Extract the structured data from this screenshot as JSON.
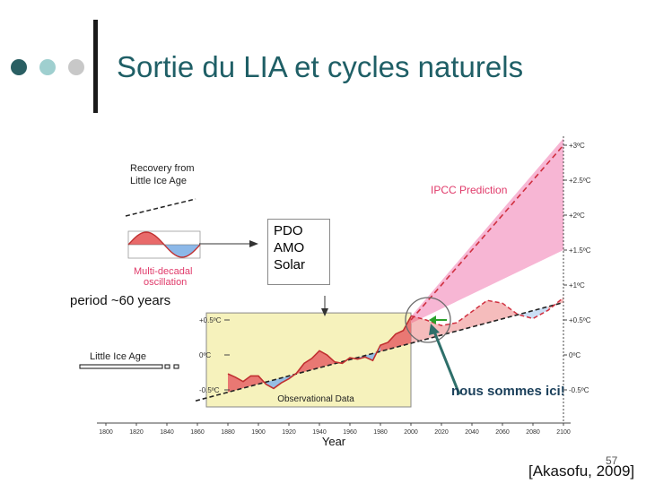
{
  "slide": {
    "title": "Sortie du LIA et cycles naturels",
    "page_number": "57",
    "citation": "[Akasofu, 2009]",
    "bullet_colors": [
      "#2a5f63",
      "#9fcfcf",
      "#c8c8c8"
    ]
  },
  "labels": {
    "recovery": [
      "Recovery from",
      "Little  Ice Age"
    ],
    "multidecadal": [
      "Multi-decadal",
      "oscillation"
    ],
    "period": "period ~60 years",
    "lia_legend": "Little Ice Age",
    "ipcc": "IPCC Prediction",
    "obs": "Observational Data",
    "here": "nous sommes ici!"
  },
  "callout": {
    "lines": [
      "PDO",
      "AMO",
      "Solar"
    ]
  },
  "colors": {
    "ipcc_fan": "#f7b6d4",
    "ipcc_line": "#d03040",
    "warm": "#e86a6a",
    "cool": "#8cb8e8",
    "obs_box": "#f6f2bc",
    "arrow": "#2e6f6a",
    "green_arrow": "#2aa02a"
  },
  "chart_data": {
    "type": "line",
    "title": "",
    "xlabel": "Year",
    "ylabel": "",
    "xlim": [
      1800,
      2100
    ],
    "ylim": [
      -0.7,
      3.1
    ],
    "x_ticks": [
      1800,
      1820,
      1840,
      1860,
      1880,
      1900,
      1920,
      1940,
      1960,
      1980,
      2000,
      2020,
      2040,
      2060,
      2080,
      2100
    ],
    "y_ticks_right": [
      {
        "value": 3.0,
        "label": "+3ºC"
      },
      {
        "value": 2.5,
        "label": "+2.5ºC"
      },
      {
        "value": 2.0,
        "label": "+2ºC"
      },
      {
        "value": 1.5,
        "label": "+1.5ºC"
      },
      {
        "value": 1.0,
        "label": "+1ºC"
      },
      {
        "value": 0.5,
        "label": "+0.5ºC"
      },
      {
        "value": 0.0,
        "label": "0ºC"
      },
      {
        "value": -0.5,
        "label": "-0.5ºC"
      }
    ],
    "y_ticks_left": [
      {
        "value": 0.5,
        "label": "+0.5ºC"
      },
      {
        "value": 0.0,
        "label": "0ºC"
      },
      {
        "value": -0.5,
        "label": "-0.5ºC"
      }
    ],
    "obs_range": [
      1880,
      2000
    ],
    "trend": {
      "x": [
        1800,
        2100
      ],
      "y": [
        -1.0,
        0.75
      ]
    },
    "ipcc_line": {
      "x": [
        2000,
        2100
      ],
      "y": [
        0.5,
        3.0
      ]
    },
    "ipcc_fan": {
      "x": [
        2000,
        2100
      ],
      "low": [
        0.45,
        1.5
      ],
      "high": [
        0.55,
        3.1
      ]
    },
    "observed": {
      "x": [
        1880,
        1885,
        1890,
        1895,
        1900,
        1905,
        1910,
        1915,
        1920,
        1925,
        1930,
        1935,
        1940,
        1945,
        1950,
        1955,
        1960,
        1965,
        1970,
        1975,
        1980,
        1985,
        1990,
        1995,
        2000
      ],
      "y": [
        -0.27,
        -0.32,
        -0.38,
        -0.3,
        -0.3,
        -0.42,
        -0.48,
        -0.4,
        -0.34,
        -0.26,
        -0.12,
        -0.05,
        0.06,
        0.0,
        -0.1,
        -0.12,
        -0.04,
        -0.06,
        -0.03,
        -0.08,
        0.14,
        0.18,
        0.3,
        0.35,
        0.55
      ]
    },
    "projection": {
      "x": [
        2000,
        2010,
        2020,
        2030,
        2040,
        2050,
        2060,
        2070,
        2080,
        2090,
        2100
      ],
      "y": [
        0.56,
        0.5,
        0.42,
        0.46,
        0.62,
        0.78,
        0.74,
        0.58,
        0.52,
        0.64,
        0.82
      ]
    },
    "panels": {
      "recovery_trend": {
        "x": [
          0,
          1
        ],
        "y": [
          0,
          1
        ]
      },
      "oscillation": {
        "x": [
          0,
          0.25,
          0.5,
          0.75,
          1.0
        ],
        "y": [
          0,
          1,
          0,
          -1,
          0
        ]
      }
    }
  }
}
